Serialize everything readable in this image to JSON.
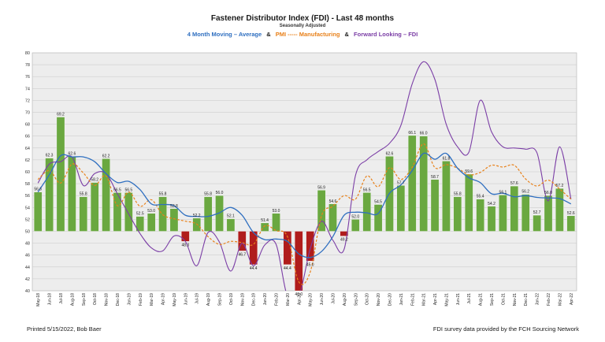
{
  "title": "Fastener Distributor Index (FDI) - Last 48 months",
  "subtitle": "Seasonally Adjusted",
  "legend": {
    "avg_label": "4 Month Moving – Average",
    "pmi_label": "PMI ----- Manufacturing",
    "fli_label": "Forward Looking – FDI",
    "amp": "&"
  },
  "footer": {
    "left": "Printed 5/15/2022, Bob Baer",
    "right": "FDI survey data provided by the FCH Sourcing Network"
  },
  "colors": {
    "above": "#6aa840",
    "below": "#b01c1c",
    "avg": "#2f6fc0",
    "pmi": "#e8811a",
    "fli": "#7b3ea6",
    "grid": "#c8c8c8",
    "plot_bg": "#ededed"
  },
  "chart_data": {
    "type": "bar",
    "title": "Fastener Distributor Index (FDI) - Last 48 months",
    "subtitle": "Seasonally Adjusted",
    "ylim": [
      40,
      80
    ],
    "baseline": 50,
    "yticks": [
      40,
      42,
      44,
      46,
      48,
      50,
      52,
      54,
      56,
      58,
      60,
      62,
      64,
      66,
      68,
      70,
      72,
      74,
      76,
      78,
      80
    ],
    "grid": true,
    "categories": [
      "May-18",
      "Jun-18",
      "Jul-18",
      "Aug-18",
      "Sep-18",
      "Oct-18",
      "Nov-18",
      "Dec-18",
      "Jan-19",
      "Feb-19",
      "Mar-19",
      "Apr-19",
      "May-19",
      "Jun-19",
      "Jul-19",
      "Aug-19",
      "Sep-19",
      "Oct-19",
      "Nov-19",
      "Dec-19",
      "Jan-20",
      "Feb-20",
      "Mar-20",
      "Apr-20",
      "May-20",
      "Jun-20",
      "Jul-20",
      "Aug-20",
      "Sep-20",
      "Oct-20",
      "Nov-20",
      "Dec-20",
      "Jan-21",
      "Feb-21",
      "Mar-21",
      "Apr-21",
      "May-21",
      "Jun-21",
      "Jul-21",
      "Aug-21",
      "Sep-21",
      "Oct-21",
      "Nov-21",
      "Dec-21",
      "Jan-22",
      "Feb-22",
      "Mar-22",
      "Apr-22"
    ],
    "series": [
      {
        "name": "FDI",
        "kind": "bar",
        "labels": "data",
        "values": [
          56.6,
          62.3,
          69.2,
          62.6,
          55.8,
          58.2,
          62.2,
          56.5,
          56.5,
          52.5,
          53.0,
          55.8,
          53.8,
          48.3,
          52.2,
          55.8,
          56.0,
          52.1,
          46.7,
          44.4,
          51.4,
          53.0,
          44.4,
          40.0,
          45.0,
          56.9,
          54.6,
          49.2,
          52.0,
          56.5,
          54.5,
          62.6,
          57.7,
          66.1,
          66.0,
          58.7,
          61.8,
          55.8,
          59.6,
          55.4,
          54.2,
          56.1,
          57.6,
          56.2,
          52.7,
          56.0,
          57.2,
          52.6
        ]
      },
      {
        "name": "4 Month Moving – Average",
        "kind": "line",
        "values": [
          56.6,
          59.5,
          62.7,
          62.5,
          62.5,
          61.7,
          59.7,
          58.2,
          58.4,
          57.0,
          54.6,
          54.5,
          54.3,
          52.7,
          52.5,
          52.5,
          53.1,
          54.0,
          52.7,
          49.8,
          48.6,
          48.7,
          48.3,
          46.2,
          45.6,
          46.6,
          49.1,
          52.7,
          53.2,
          53.1,
          53.0,
          56.4,
          57.8,
          60.2,
          63.1,
          62.1,
          63.1,
          60.6,
          59.0,
          58.2,
          56.3,
          56.4,
          55.8,
          56.0,
          55.7,
          55.6,
          55.5,
          54.6
        ]
      },
      {
        "name": "PMI ----- Manufacturing",
        "kind": "line",
        "dashed": true,
        "values": [
          58.7,
          60.2,
          58.1,
          61.3,
          59.8,
          57.7,
          59.3,
          54.3,
          56.6,
          54.2,
          55.3,
          52.8,
          52.1,
          51.7,
          51.2,
          49.1,
          47.8,
          48.3,
          48.1,
          47.8,
          50.9,
          50.1,
          49.1,
          41.5,
          43.1,
          52.6,
          54.2,
          56.0,
          55.4,
          59.3,
          57.5,
          60.7,
          58.7,
          60.8,
          64.7,
          60.7,
          61.2,
          60.6,
          59.5,
          59.9,
          61.1,
          60.8,
          61.1,
          58.8,
          57.6,
          58.6,
          57.1,
          55.4
        ]
      },
      {
        "name": "Forward Looking – FDI",
        "kind": "line",
        "values": [
          58.1,
          61.3,
          61.7,
          62.5,
          57.7,
          59.7,
          59.7,
          56.3,
          52.9,
          49.6,
          47.2,
          46.7,
          49.2,
          48.3,
          44.2,
          49.8,
          48.2,
          43.3,
          48.0,
          44.2,
          47.7,
          47.8,
          36.0,
          32.0,
          47.0,
          51.7,
          48.5,
          47.0,
          59.4,
          62.0,
          63.4,
          64.8,
          67.8,
          74.8,
          78.5,
          75.5,
          68.0,
          64.2,
          63.3,
          72.0,
          66.7,
          64.2,
          64.0,
          63.8,
          63.2,
          55.1,
          64.2,
          55.4
        ]
      }
    ]
  }
}
